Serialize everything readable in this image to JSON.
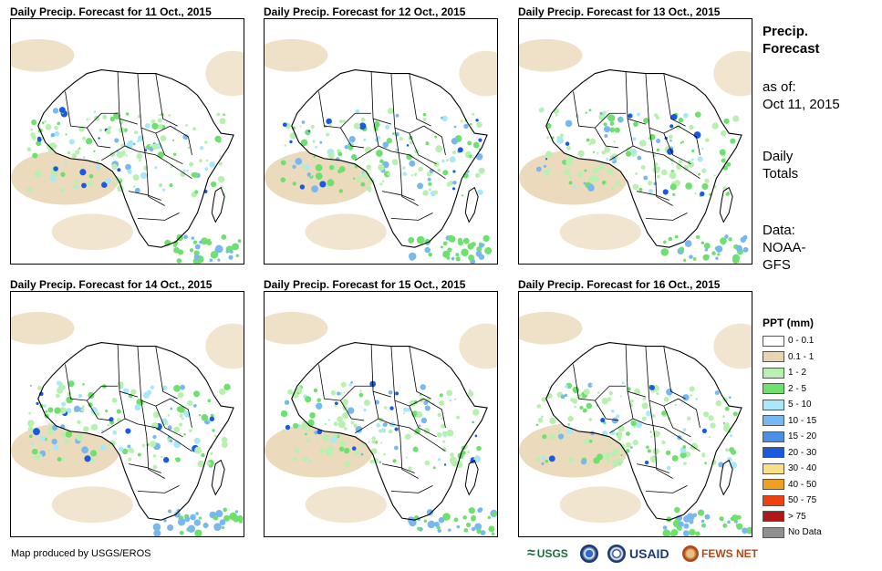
{
  "panels": [
    {
      "title": "Daily Precip. Forecast for 11 Oct., 2015"
    },
    {
      "title": "Daily Precip. Forecast for 12 Oct., 2015"
    },
    {
      "title": "Daily Precip. Forecast for 13 Oct., 2015"
    },
    {
      "title": "Daily Precip. Forecast for 14 Oct., 2015"
    },
    {
      "title": "Daily Precip. Forecast for 15 Oct., 2015"
    },
    {
      "title": "Daily Precip. Forecast for 16 Oct., 2015"
    }
  ],
  "side": {
    "heading_line1": "Precip.",
    "heading_line2": "Forecast",
    "asof_label": "as of:",
    "asof_date": "Oct 11, 2015",
    "totals_line1": "Daily",
    "totals_line2": "Totals",
    "data_label": "Data:",
    "data_line1": "NOAA-",
    "data_line2": "GFS"
  },
  "legend": {
    "title": "PPT (mm)",
    "items": [
      {
        "label": "0 - 0.1",
        "color": "#ffffff"
      },
      {
        "label": "0.1 - 1",
        "color": "#e8d4b0"
      },
      {
        "label": "1 - 2",
        "color": "#b8f0b0"
      },
      {
        "label": "2 - 5",
        "color": "#6ee06e"
      },
      {
        "label": "5 - 10",
        "color": "#a8e8f8"
      },
      {
        "label": "10 - 15",
        "color": "#78b8f0"
      },
      {
        "label": "15 - 20",
        "color": "#4a90e8"
      },
      {
        "label": "20 - 30",
        "color": "#1a5ae0"
      },
      {
        "label": "30 - 40",
        "color": "#f8e088"
      },
      {
        "label": "40 - 50",
        "color": "#f0a020"
      },
      {
        "label": "50 - 75",
        "color": "#f04010"
      },
      {
        "label": "> 75",
        "color": "#b01818"
      },
      {
        "label": "No Data",
        "color": "#909090"
      }
    ]
  },
  "credit": "Map produced by USGS/EROS",
  "logos": {
    "usgs": "USGS",
    "usaid": "USAID",
    "fews": "FEWS NET"
  }
}
